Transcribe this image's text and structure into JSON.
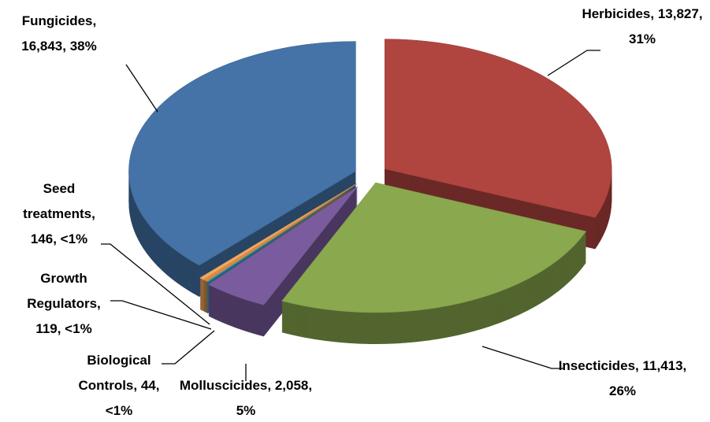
{
  "chart_data": {
    "type": "pie",
    "categories": [
      "Herbicides,",
      "Insecticides,",
      "Molluscicides,",
      "Biological Controls,",
      "Growth Regulators,",
      "Seed treatments,",
      "Fungicides,"
    ],
    "values": [
      13827,
      11413,
      2058,
      44,
      119,
      146,
      16843
    ],
    "value_labels": [
      "13,827, 31%",
      "11,413, 26%",
      "2,058, 5%",
      "44, <1%",
      "119, <1%",
      "146, <1%",
      "16,843, 38%"
    ],
    "colors": [
      "#b0443f",
      "#8aa84e",
      "#7a5c9e",
      "#3fa3c4",
      "#e08a3c",
      "#f0a860",
      "#4573a7"
    ]
  }
}
